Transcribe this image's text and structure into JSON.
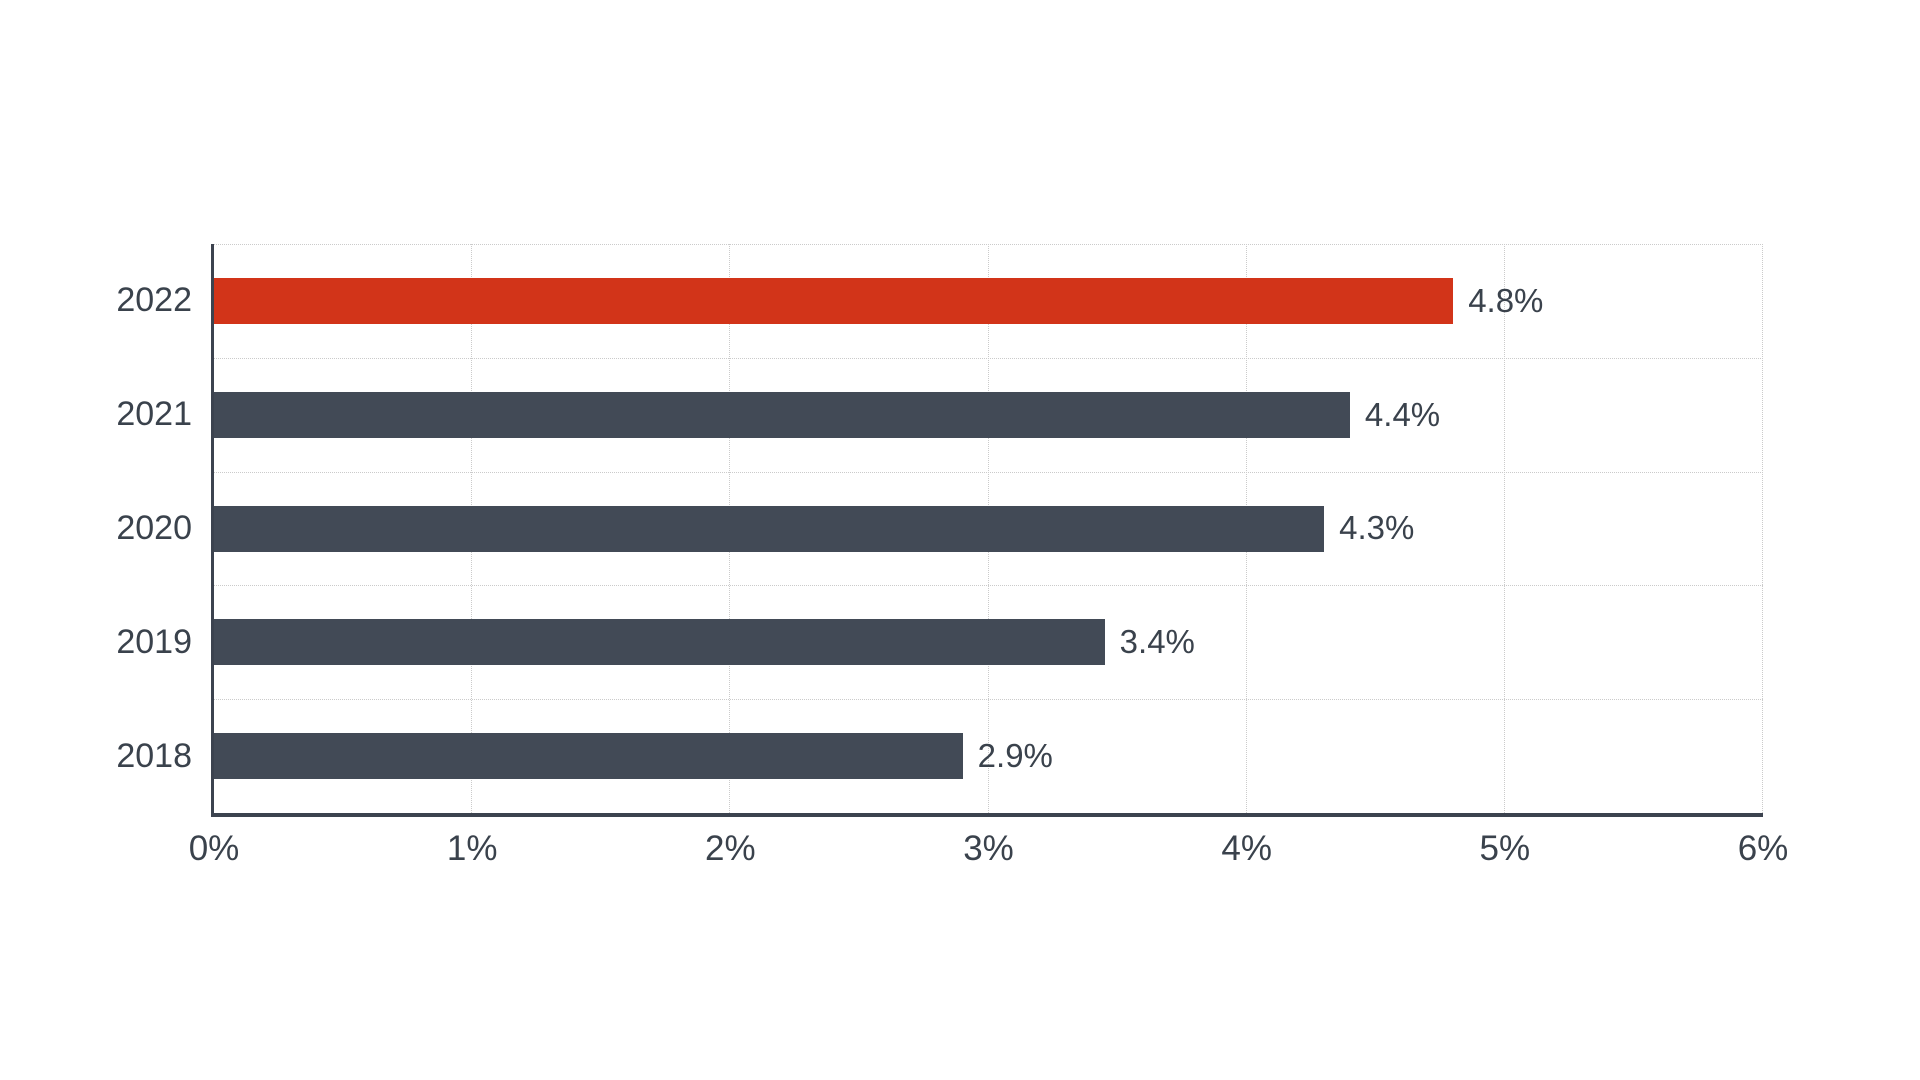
{
  "chart_data": {
    "type": "bar",
    "orientation": "horizontal",
    "title": "",
    "categories": [
      "2022",
      "2021",
      "2020",
      "2019",
      "2018"
    ],
    "values": [
      4.8,
      4.4,
      4.3,
      3.45,
      2.9
    ],
    "value_labels": [
      "4.8%",
      "4.4%",
      "4.3%",
      "3.4%",
      "2.9%"
    ],
    "x_tick_labels": [
      "0%",
      "1%",
      "2%",
      "3%",
      "4%",
      "5%",
      "6%"
    ],
    "x_tick_values": [
      0,
      1,
      2,
      3,
      4,
      5,
      6
    ],
    "xlim": [
      0,
      6
    ],
    "xlabel": "",
    "ylabel": "",
    "legend": "none",
    "grid": "dotted",
    "highlight_index": 0,
    "colors": {
      "highlight_bar": "#d23419",
      "default_bar": "#424a56",
      "axis": "#3c434f",
      "label_text": "#3a424c",
      "gridline": "#cbcbcb",
      "background": "#ffffff"
    }
  }
}
